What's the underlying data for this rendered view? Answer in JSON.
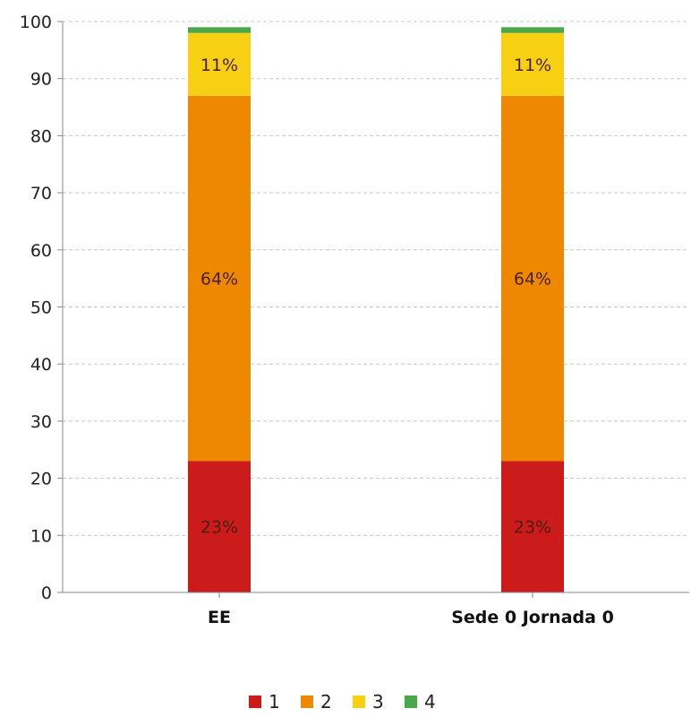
{
  "chart_data": {
    "type": "bar",
    "stacked": true,
    "categories": [
      "EE",
      "Sede 0 Jornada 0"
    ],
    "series": [
      {
        "name": "1",
        "color": "#cc1b1b",
        "values": [
          23,
          23
        ],
        "labels": [
          "23%",
          "23%"
        ]
      },
      {
        "name": "2",
        "color": "#ee8800",
        "values": [
          64,
          64
        ],
        "labels": [
          "64%",
          "64%"
        ]
      },
      {
        "name": "3",
        "color": "#f7d014",
        "values": [
          11,
          11
        ],
        "labels": [
          "11%",
          "11%"
        ]
      },
      {
        "name": "4",
        "color": "#4ca64c",
        "values": [
          1,
          1
        ],
        "labels": [
          "",
          ""
        ]
      }
    ],
    "ylim": [
      0,
      100
    ],
    "yticks": [
      0,
      10,
      20,
      30,
      40,
      50,
      60,
      70,
      80,
      90,
      100
    ],
    "title": "",
    "xlabel": "",
    "ylabel": "",
    "grid": true,
    "legend": "bottom-center"
  }
}
